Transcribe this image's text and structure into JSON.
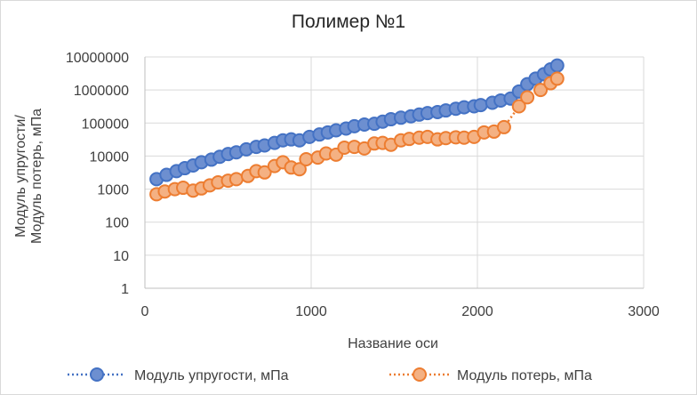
{
  "chart_data": {
    "type": "scatter",
    "title": "Полимер №1",
    "xlabel": "Название оси",
    "ylabel_line1": "Модуль упругости/",
    "ylabel_line2": "Модуль потерь, мПа",
    "xlim": [
      0,
      3000
    ],
    "ylim": [
      1,
      10000000
    ],
    "yscale": "log",
    "x_ticks": [
      0,
      1000,
      2000,
      3000
    ],
    "y_ticks": [
      1,
      10,
      100,
      1000,
      10000,
      100000,
      1000000,
      10000000
    ],
    "x_tick_labels": [
      "0",
      "1000",
      "2000",
      "3000"
    ],
    "y_tick_labels": [
      "1",
      "10",
      "100",
      "1000",
      "10000",
      "100000",
      "1000000",
      "10000000"
    ],
    "grid": true,
    "legend_position": "bottom",
    "series": [
      {
        "name": "Модуль упругости, мПа",
        "color": "#4472c4",
        "fill": "#6d8fd0",
        "points": [
          [
            70,
            2000
          ],
          [
            130,
            2700
          ],
          [
            190,
            3500
          ],
          [
            240,
            4300
          ],
          [
            290,
            5200
          ],
          [
            340,
            6500
          ],
          [
            400,
            7800
          ],
          [
            450,
            9500
          ],
          [
            500,
            11500
          ],
          [
            550,
            13000
          ],
          [
            610,
            16000
          ],
          [
            670,
            19000
          ],
          [
            720,
            21000
          ],
          [
            780,
            25000
          ],
          [
            830,
            30000
          ],
          [
            880,
            32000
          ],
          [
            930,
            30000
          ],
          [
            990,
            38000
          ],
          [
            1050,
            45000
          ],
          [
            1100,
            52000
          ],
          [
            1150,
            60000
          ],
          [
            1210,
            68000
          ],
          [
            1260,
            80000
          ],
          [
            1320,
            90000
          ],
          [
            1380,
            95000
          ],
          [
            1430,
            110000
          ],
          [
            1480,
            130000
          ],
          [
            1540,
            145000
          ],
          [
            1600,
            160000
          ],
          [
            1650,
            180000
          ],
          [
            1700,
            200000
          ],
          [
            1760,
            215000
          ],
          [
            1810,
            240000
          ],
          [
            1870,
            270000
          ],
          [
            1920,
            300000
          ],
          [
            1980,
            320000
          ],
          [
            2020,
            350000
          ],
          [
            2090,
            410000
          ],
          [
            2140,
            480000
          ],
          [
            2200,
            550000
          ],
          [
            2250,
            900000
          ],
          [
            2300,
            1500000
          ],
          [
            2350,
            2200000
          ],
          [
            2400,
            3000000
          ],
          [
            2440,
            4200000
          ],
          [
            2480,
            5500000
          ]
        ]
      },
      {
        "name": "Модуль потерь, мПа",
        "color": "#ed7d31",
        "fill": "#f4b183",
        "points": [
          [
            70,
            700
          ],
          [
            120,
            850
          ],
          [
            180,
            1000
          ],
          [
            230,
            1100
          ],
          [
            290,
            900
          ],
          [
            340,
            1050
          ],
          [
            390,
            1300
          ],
          [
            440,
            1600
          ],
          [
            500,
            1800
          ],
          [
            550,
            2000
          ],
          [
            620,
            2500
          ],
          [
            670,
            3500
          ],
          [
            720,
            3200
          ],
          [
            780,
            5000
          ],
          [
            830,
            6500
          ],
          [
            880,
            4500
          ],
          [
            930,
            4000
          ],
          [
            970,
            8000
          ],
          [
            1040,
            9000
          ],
          [
            1090,
            12000
          ],
          [
            1150,
            11000
          ],
          [
            1200,
            18000
          ],
          [
            1260,
            19000
          ],
          [
            1320,
            17000
          ],
          [
            1380,
            24000
          ],
          [
            1430,
            25000
          ],
          [
            1480,
            22000
          ],
          [
            1540,
            30000
          ],
          [
            1590,
            33000
          ],
          [
            1650,
            36000
          ],
          [
            1700,
            38000
          ],
          [
            1760,
            32000
          ],
          [
            1810,
            35000
          ],
          [
            1870,
            37000
          ],
          [
            1920,
            36000
          ],
          [
            1980,
            38000
          ],
          [
            2040,
            52000
          ],
          [
            2100,
            55000
          ],
          [
            2160,
            75000
          ],
          [
            2250,
            320000
          ],
          [
            2300,
            600000
          ],
          [
            2380,
            1000000
          ],
          [
            2440,
            1600000
          ],
          [
            2480,
            2200000
          ]
        ]
      }
    ]
  }
}
